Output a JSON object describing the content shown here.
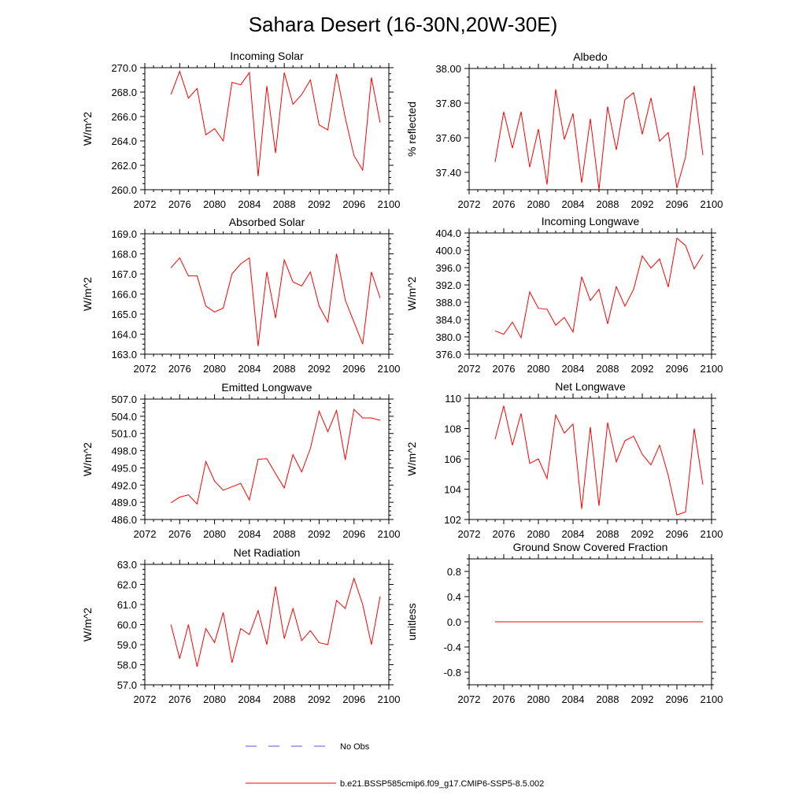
{
  "title": "Sahara Desert (16-30N,20W-30E)",
  "legend": [
    {
      "label": "No Obs",
      "color": "#5a5ad0",
      "dash": true
    },
    {
      "label": "b.e21.BSSP585cmip6.f09_g17.CMIP6-SSP5-8.5.002",
      "color": "#ff0000",
      "dash": false
    }
  ],
  "chart_data": [
    {
      "type": "line",
      "title": "Incoming Solar",
      "xlabel": "",
      "ylabel": "W/m^2",
      "xlim": [
        2072,
        2100
      ],
      "ylim": [
        260,
        270
      ],
      "xticks": [
        2072,
        2076,
        2080,
        2084,
        2088,
        2092,
        2096,
        2100
      ],
      "xtick_labels": [
        "2072",
        "2076",
        "2080",
        "2084",
        "2088",
        "2092",
        "2096",
        "2100"
      ],
      "yticks": [
        260,
        262,
        264,
        266,
        268,
        270
      ],
      "ytick_labels": [
        "260.0",
        "262.0",
        "264.0",
        "266.0",
        "268.0",
        "270.0"
      ],
      "color": "#ff0000",
      "x": [
        2075,
        2076,
        2077,
        2078,
        2079,
        2080,
        2081,
        2082,
        2083,
        2084,
        2085,
        2086,
        2087,
        2088,
        2089,
        2090,
        2091,
        2092,
        2093,
        2094,
        2095,
        2096,
        2097,
        2098,
        2099
      ],
      "y": [
        267.8,
        269.7,
        267.5,
        268.3,
        264.5,
        265.0,
        264.0,
        268.8,
        268.6,
        269.6,
        261.1,
        268.5,
        263.0,
        269.6,
        267.0,
        267.8,
        269.0,
        265.3,
        264.9,
        269.5,
        265.9,
        262.8,
        261.6,
        269.2,
        265.5
      ]
    },
    {
      "type": "line",
      "title": "Albedo",
      "xlabel": "",
      "ylabel": "% reflected",
      "xlim": [
        2072,
        2100
      ],
      "ylim": [
        37.3,
        38.0
      ],
      "xticks": [
        2072,
        2076,
        2080,
        2084,
        2088,
        2092,
        2096,
        2100
      ],
      "xtick_labels": [
        "2072",
        "2076",
        "2080",
        "2084",
        "2088",
        "2092",
        "2096",
        "2100"
      ],
      "yticks": [
        37.4,
        37.6,
        37.8,
        38.0
      ],
      "ytick_labels": [
        "37.40",
        "37.60",
        "37.80",
        "38.00"
      ],
      "color": "#ff0000",
      "x": [
        2075,
        2076,
        2077,
        2078,
        2079,
        2080,
        2081,
        2082,
        2083,
        2084,
        2085,
        2086,
        2087,
        2088,
        2089,
        2090,
        2091,
        2092,
        2093,
        2094,
        2095,
        2096,
        2097,
        2098,
        2099
      ],
      "y": [
        37.46,
        37.75,
        37.54,
        37.75,
        37.43,
        37.65,
        37.33,
        37.88,
        37.59,
        37.74,
        37.34,
        37.71,
        37.3,
        37.78,
        37.53,
        37.82,
        37.86,
        37.62,
        37.83,
        37.58,
        37.63,
        37.31,
        37.49,
        37.9,
        37.5
      ]
    },
    {
      "type": "line",
      "title": "Absorbed Solar",
      "xlabel": "",
      "ylabel": "W/m^2",
      "xlim": [
        2072,
        2100
      ],
      "ylim": [
        163,
        169
      ],
      "xticks": [
        2072,
        2076,
        2080,
        2084,
        2088,
        2092,
        2096,
        2100
      ],
      "xtick_labels": [
        "2072",
        "2076",
        "2080",
        "2084",
        "2088",
        "2092",
        "2096",
        "2100"
      ],
      "yticks": [
        163,
        164,
        165,
        166,
        167,
        168,
        169
      ],
      "ytick_labels": [
        "163.0",
        "164.0",
        "165.0",
        "166.0",
        "167.0",
        "168.0",
        "169.0"
      ],
      "color": "#ff0000",
      "x": [
        2075,
        2076,
        2077,
        2078,
        2079,
        2080,
        2081,
        2082,
        2083,
        2084,
        2085,
        2086,
        2087,
        2088,
        2089,
        2090,
        2091,
        2092,
        2093,
        2094,
        2095,
        2096,
        2097,
        2098,
        2099
      ],
      "y": [
        167.3,
        167.8,
        166.9,
        166.9,
        165.4,
        165.1,
        165.3,
        167.0,
        167.5,
        167.8,
        163.4,
        167.1,
        164.8,
        167.7,
        166.6,
        166.4,
        167.1,
        165.4,
        164.6,
        168.0,
        165.7,
        164.6,
        163.5,
        167.1,
        165.8
      ]
    },
    {
      "type": "line",
      "title": "Incoming Longwave",
      "xlabel": "",
      "ylabel": "W/m^2",
      "xlim": [
        2072,
        2100
      ],
      "ylim": [
        376,
        404
      ],
      "xticks": [
        2072,
        2076,
        2080,
        2084,
        2088,
        2092,
        2096,
        2100
      ],
      "xtick_labels": [
        "2072",
        "2076",
        "2080",
        "2084",
        "2088",
        "2092",
        "2096",
        "2100"
      ],
      "yticks": [
        376,
        380,
        384,
        388,
        392,
        396,
        400,
        404
      ],
      "ytick_labels": [
        "376.0",
        "380.0",
        "384.0",
        "388.0",
        "392.0",
        "396.0",
        "400.0",
        "404.0"
      ],
      "color": "#ff0000",
      "x": [
        2075,
        2076,
        2077,
        2078,
        2079,
        2080,
        2081,
        2082,
        2083,
        2084,
        2085,
        2086,
        2087,
        2088,
        2089,
        2090,
        2091,
        2092,
        2093,
        2094,
        2095,
        2096,
        2097,
        2098,
        2099
      ],
      "y": [
        381.4,
        380.6,
        383.4,
        379.8,
        390.4,
        386.6,
        386.4,
        382.7,
        384.5,
        381.1,
        393.9,
        388.4,
        391.0,
        383.0,
        391.6,
        387.1,
        391.0,
        398.7,
        395.9,
        398.0,
        391.5,
        402.8,
        401.1,
        395.7,
        399.0
      ]
    },
    {
      "type": "line",
      "title": "Emitted Longwave",
      "xlabel": "",
      "ylabel": "W/m^2",
      "xlim": [
        2072,
        2100
      ],
      "ylim": [
        486,
        507
      ],
      "xticks": [
        2072,
        2076,
        2080,
        2084,
        2088,
        2092,
        2096,
        2100
      ],
      "xtick_labels": [
        "2072",
        "2076",
        "2080",
        "2084",
        "2088",
        "2092",
        "2096",
        "2100"
      ],
      "yticks": [
        486,
        489,
        492,
        495,
        498,
        501,
        504,
        507
      ],
      "ytick_labels": [
        "486.0",
        "489.0",
        "492.0",
        "495.0",
        "498.0",
        "501.0",
        "504.0",
        "507.0"
      ],
      "color": "#ff0000",
      "x": [
        2075,
        2076,
        2077,
        2078,
        2079,
        2080,
        2081,
        2082,
        2083,
        2084,
        2085,
        2086,
        2087,
        2088,
        2089,
        2090,
        2091,
        2092,
        2093,
        2094,
        2095,
        2096,
        2097,
        2098,
        2099
      ],
      "y": [
        488.9,
        489.9,
        490.3,
        488.7,
        496.1,
        492.7,
        491.1,
        491.7,
        492.3,
        489.4,
        496.5,
        496.6,
        494.0,
        491.5,
        497.3,
        494.3,
        498.4,
        504.9,
        501.3,
        505.0,
        496.4,
        505.2,
        503.7,
        503.7,
        503.3
      ]
    },
    {
      "type": "line",
      "title": "Net Longwave",
      "xlabel": "",
      "ylabel": "W/m^2",
      "xlim": [
        2072,
        2100
      ],
      "ylim": [
        102,
        110
      ],
      "xticks": [
        2072,
        2076,
        2080,
        2084,
        2088,
        2092,
        2096,
        2100
      ],
      "xtick_labels": [
        "2072",
        "2076",
        "2080",
        "2084",
        "2088",
        "2092",
        "2096",
        "2100"
      ],
      "yticks": [
        102,
        104,
        106,
        108,
        110
      ],
      "ytick_labels": [
        "102",
        "104",
        "106",
        "108",
        "110"
      ],
      "color": "#ff0000",
      "x": [
        2075,
        2076,
        2077,
        2078,
        2079,
        2080,
        2081,
        2082,
        2083,
        2084,
        2085,
        2086,
        2087,
        2088,
        2089,
        2090,
        2091,
        2092,
        2093,
        2094,
        2095,
        2096,
        2097,
        2098,
        2099
      ],
      "y": [
        107.3,
        109.5,
        106.9,
        109.0,
        105.7,
        106.0,
        104.7,
        108.9,
        107.7,
        108.3,
        102.7,
        108.1,
        102.9,
        108.4,
        105.8,
        107.2,
        107.5,
        106.3,
        105.6,
        106.9,
        104.9,
        102.3,
        102.5,
        108.0,
        104.3
      ]
    },
    {
      "type": "line",
      "title": "Net Radiation",
      "xlabel": "",
      "ylabel": "W/m^2",
      "xlim": [
        2072,
        2100
      ],
      "ylim": [
        57,
        63
      ],
      "xticks": [
        2072,
        2076,
        2080,
        2084,
        2088,
        2092,
        2096,
        2100
      ],
      "xtick_labels": [
        "2072",
        "2076",
        "2080",
        "2084",
        "2088",
        "2092",
        "2096",
        "2100"
      ],
      "yticks": [
        57,
        58,
        59,
        60,
        61,
        62,
        63
      ],
      "ytick_labels": [
        "57.0",
        "58.0",
        "59.0",
        "60.0",
        "61.0",
        "62.0",
        "63.0"
      ],
      "color": "#ff0000",
      "x": [
        2075,
        2076,
        2077,
        2078,
        2079,
        2080,
        2081,
        2082,
        2083,
        2084,
        2085,
        2086,
        2087,
        2088,
        2089,
        2090,
        2091,
        2092,
        2093,
        2094,
        2095,
        2096,
        2097,
        2098,
        2099
      ],
      "y": [
        60.0,
        58.3,
        60.0,
        57.9,
        59.8,
        59.1,
        60.6,
        58.1,
        59.8,
        59.5,
        60.7,
        59.0,
        61.9,
        59.3,
        60.8,
        59.2,
        59.7,
        59.1,
        59.0,
        61.2,
        60.8,
        62.3,
        61.0,
        59.0,
        61.4
      ]
    },
    {
      "type": "line",
      "title": "Ground Snow Covered Fraction",
      "xlabel": "",
      "ylabel": "unitless",
      "xlim": [
        2072,
        2100
      ],
      "ylim": [
        -1.0,
        1.0
      ],
      "xticks": [
        2072,
        2076,
        2080,
        2084,
        2088,
        2092,
        2096,
        2100
      ],
      "xtick_labels": [
        "2072",
        "2076",
        "2080",
        "2084",
        "2088",
        "2092",
        "2096",
        "2100"
      ],
      "yticks": [
        -0.8,
        -0.4,
        0.0,
        0.4,
        0.8
      ],
      "ytick_labels": [
        "-0.8",
        "-0.4",
        "0.0",
        "0.4",
        "0.8"
      ],
      "color": "#ff0000",
      "x": [
        2075,
        2076,
        2077,
        2078,
        2079,
        2080,
        2081,
        2082,
        2083,
        2084,
        2085,
        2086,
        2087,
        2088,
        2089,
        2090,
        2091,
        2092,
        2093,
        2094,
        2095,
        2096,
        2097,
        2098,
        2099
      ],
      "y": [
        0,
        0,
        0,
        0,
        0,
        0,
        0,
        0,
        0,
        0,
        0,
        0,
        0,
        0,
        0,
        0,
        0,
        0,
        0,
        0,
        0,
        0,
        0,
        0,
        0
      ]
    }
  ]
}
